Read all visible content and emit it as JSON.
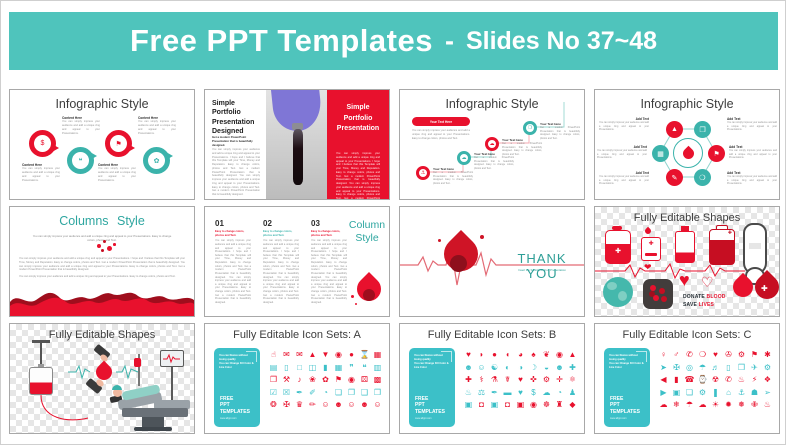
{
  "header": {
    "title_main": "Free PPT Templates",
    "dash": "-",
    "title_sub": "Slides No 37~48"
  },
  "strings": {
    "content_here": "Content Here",
    "your_text_here": "Your Text Here",
    "add_text": "Add Text"
  },
  "filler": {
    "tiny": "You can simply impress your audience and add a unique zing and appeal to your Presentations.",
    "step": "Get a modern PowerPoint Presentation that is beautifully designed. Easy to change colors, photos and Text.",
    "medium": "You can simply impress your audience and add a unique zing and appeal to your Presentations. Easy to change colors, photos and Text.",
    "long": "You can simply impress your audience and add a unique zing and appeal to your Presentations. I hope and I believe that this Template will your Time, Money and Reputation. Easy to change colors, photos and Text. Get a modern PowerPoint Presentation that is beautifully designed. You can simply impress your audience and add a unique zing and appeal to your Presentations. Easy to change colors, photos and Text. Get a modern PowerPoint Presentation that is beautifully designed."
  },
  "colors": {
    "banner_teal": "#4fc4bc",
    "accent_teal": "#3bb3ab",
    "accent_red": "#e8112d",
    "dark_red": "#9f0e1d"
  },
  "icon_card": {
    "lines": [
      "You can Resize without losing quality",
      "You can Change Fill Color &",
      "Line Color"
    ],
    "brand": [
      "FREE",
      "PPT",
      "TEMPLATES"
    ],
    "url": "www.allppt.com"
  },
  "slides": [
    {
      "name": "infographic-loops",
      "title": "Infographic Style",
      "icons": [
        "$",
        "❝",
        "⚑",
        "✿"
      ]
    },
    {
      "name": "simple-portfolio",
      "heading": "Simple Portfolio Presentation Designed",
      "lead": "Get a modern PowerPoint Presentation that is beautifully designed.",
      "right_heading": "Simple Portfolio Presentation"
    },
    {
      "name": "infographic-timeline",
      "title": "Infographic Style",
      "icons": [
        "⚓",
        "☁",
        "☁",
        "❍"
      ]
    },
    {
      "name": "infographic-hub",
      "title": "Infographic Style",
      "icons": [
        "▲",
        "❒",
        "▦",
        "⚑",
        "✎",
        "❍"
      ]
    },
    {
      "name": "columns-style",
      "title": "Columns Style"
    },
    {
      "name": "column-style",
      "side_title": "Column Style",
      "col_head": "Easy to change colors, photos and Text.",
      "nums": [
        "01",
        "02",
        "03"
      ]
    },
    {
      "name": "thank-you",
      "title": "THANK YOU",
      "subtitle": "Insert the Subtitle of Your Presentation"
    },
    {
      "name": "editable-shapes-icons",
      "title": "Fully Editable Shapes",
      "donate": {
        "w1": "DONATE",
        "w2": "BLOOD",
        "w3": "SAVE",
        "w4": "LIVES"
      }
    },
    {
      "name": "editable-shapes-scene",
      "title": "Fully Editable Shapes"
    },
    {
      "name": "icon-set-a",
      "title": "Fully Editable Icon Sets: A",
      "icon_rows": [
        {
          "color": "#e8112d",
          "glyphs": [
            "☝",
            "✉",
            "✉",
            "▲",
            "▼",
            "◉",
            "●",
            "⌛",
            "▦"
          ]
        },
        {
          "color": "#3cc0c8",
          "glyphs": [
            "▤",
            "▯",
            "□",
            "◫",
            "▮",
            "▦",
            "❞",
            "❝",
            "▥"
          ]
        },
        {
          "color": "#e8112d",
          "glyphs": [
            "❐",
            "⚒",
            "♪",
            "❀",
            "✿",
            "⚑",
            "◉",
            "⚄",
            "▩"
          ]
        },
        {
          "color": "#3cc0c8",
          "glyphs": [
            "☑",
            "☒",
            "✒",
            "✐",
            "◔",
            "❏",
            "❐",
            "❑",
            "❒"
          ]
        },
        {
          "color": "#e8112d",
          "glyphs": [
            "❂",
            "✠",
            "♛",
            "✏",
            "☺",
            "☻",
            "☺",
            "☻",
            "☺"
          ]
        }
      ]
    },
    {
      "name": "icon-set-b",
      "title": "Fully Editable Icon Sets: B",
      "icon_rows": [
        {
          "color": "#e8112d",
          "glyphs": [
            "♥",
            "◗",
            "●",
            "◖",
            "◕",
            "♠",
            "❦",
            "◉",
            "▲"
          ]
        },
        {
          "color": "#3cc0c8",
          "glyphs": [
            "☻",
            "☺",
            "☯",
            "◐",
            "◑",
            "☽",
            "◒",
            "☻",
            "✚"
          ]
        },
        {
          "color": "#e8112d",
          "glyphs": [
            "✚",
            "⚕",
            "⚗",
            "☤",
            "♥",
            "✜",
            "⚙",
            "✛",
            "⚛"
          ]
        },
        {
          "color": "#3cc0c8",
          "glyphs": [
            "♨",
            "⚖",
            "✒",
            "▬",
            "♥",
            "$",
            "☁",
            "◔",
            "♟"
          ]
        },
        {
          "color": "#e8112d",
          "colors": [
            "#3cc0c8",
            "#e8112d",
            "#3cc0c8",
            "#e8112d",
            "#e8112d",
            "#e8112d",
            "#e8112d",
            "#e8112d",
            "#e8112d"
          ],
          "glyphs": [
            "▣",
            "◘",
            "▣",
            "◘",
            "▣",
            "◉",
            "☸",
            "♜",
            "◆"
          ]
        }
      ]
    },
    {
      "name": "icon-set-c",
      "title": "Fully Editable Icon Sets: C",
      "icon_rows": [
        {
          "color": "#e8112d",
          "glyphs": [
            "♀",
            "♂",
            "✆",
            "❍",
            "♥",
            "✇",
            "⚙",
            "⚑",
            "✱"
          ]
        },
        {
          "color": "#3cc0c8",
          "glyphs": [
            "➤",
            "✠",
            "◎",
            "☂",
            "♬",
            "▯",
            "❒",
            "✈",
            "⚙"
          ]
        },
        {
          "color": "#e8112d",
          "glyphs": [
            "◀",
            "▮",
            "☎",
            "⌚",
            "☢",
            "✆",
            "♨",
            "⚡",
            "❖"
          ]
        },
        {
          "color": "#3cc0c8",
          "glyphs": [
            "▶",
            "▣",
            "❏",
            "⚙",
            "❚",
            "⌂",
            "⚓",
            "☗",
            "➢"
          ]
        },
        {
          "color": "#e8112d",
          "glyphs": [
            "☁",
            "❄",
            "☂",
            "☁",
            "☀",
            "✹",
            "❅",
            "✙",
            "♨"
          ]
        }
      ]
    }
  ]
}
